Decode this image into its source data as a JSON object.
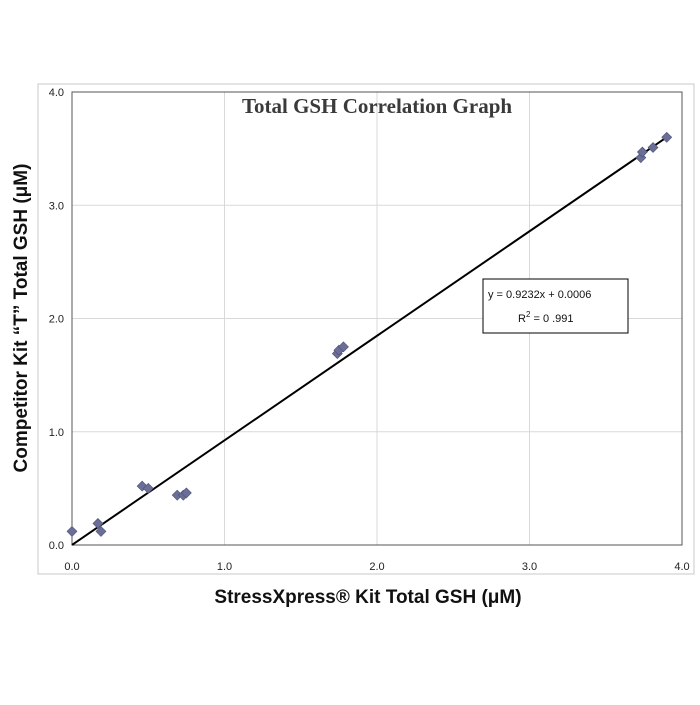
{
  "chart_data": {
    "type": "scatter",
    "title": "Total GSH Correlation Graph",
    "xlabel": "StressXpress® Kit Total GSH (μM)",
    "ylabel": "Competitor Kit “T” Total GSH (μM)",
    "xlim": [
      0,
      4
    ],
    "ylim": [
      0,
      4
    ],
    "x_ticks": [
      "0.0",
      "1.0",
      "2.0",
      "3.0",
      "4.0"
    ],
    "y_ticks": [
      "0.0",
      "1.0",
      "2.0",
      "3.0",
      "4.0"
    ],
    "grid": true,
    "series": [
      {
        "color": "#6b6e96",
        "marker": "diamond",
        "points": [
          {
            "x": 0.0,
            "y": 0.12
          },
          {
            "x": 0.17,
            "y": 0.19
          },
          {
            "x": 0.19,
            "y": 0.12
          },
          {
            "x": 0.46,
            "y": 0.52
          },
          {
            "x": 0.5,
            "y": 0.5
          },
          {
            "x": 0.69,
            "y": 0.44
          },
          {
            "x": 0.73,
            "y": 0.44
          },
          {
            "x": 0.75,
            "y": 0.46
          },
          {
            "x": 1.74,
            "y": 1.69
          },
          {
            "x": 1.75,
            "y": 1.72
          },
          {
            "x": 1.78,
            "y": 1.75
          },
          {
            "x": 3.73,
            "y": 3.42
          },
          {
            "x": 3.74,
            "y": 3.47
          },
          {
            "x": 3.81,
            "y": 3.51
          },
          {
            "x": 3.9,
            "y": 3.6
          }
        ]
      }
    ],
    "trendline": {
      "slope": 0.9232,
      "intercept": 0.0006,
      "x_range": [
        0,
        3.9
      ],
      "color": "#000000"
    },
    "annotation": {
      "equation": "y = 0.9232x + 0.0006",
      "r_squared_prefix": "R",
      "r_squared_sup": "2",
      "r_squared_value": " = 0 .991"
    }
  }
}
